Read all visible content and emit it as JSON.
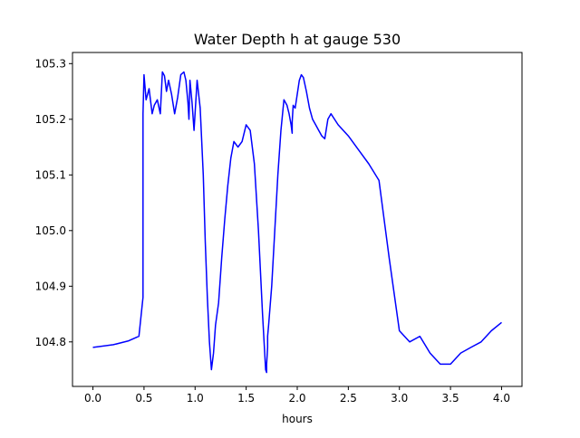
{
  "chart_data": {
    "type": "line",
    "title": "Water Depth h at gauge 530",
    "xlabel": "hours",
    "ylabel": "",
    "xlim": [
      -0.2,
      4.2
    ],
    "ylim": [
      104.72,
      105.32
    ],
    "xticks": [
      0.0,
      0.5,
      1.0,
      1.5,
      2.0,
      2.5,
      3.0,
      3.5,
      4.0
    ],
    "xtick_labels": [
      "0.0",
      "0.5",
      "1.0",
      "1.5",
      "2.0",
      "2.5",
      "3.0",
      "3.5",
      "4.0"
    ],
    "yticks": [
      104.8,
      104.9,
      105.0,
      105.1,
      105.2,
      105.3
    ],
    "ytick_labels": [
      "104.8",
      "104.9",
      "105.0",
      "105.1",
      "105.2",
      "105.3"
    ],
    "grid": false,
    "legend": "none",
    "series": [
      {
        "color": "#0000ff",
        "x": [
          0.0,
          0.2,
          0.35,
          0.45,
          0.49,
          0.49,
          0.5,
          0.52,
          0.55,
          0.58,
          0.6,
          0.63,
          0.66,
          0.68,
          0.7,
          0.72,
          0.74,
          0.77,
          0.8,
          0.83,
          0.86,
          0.89,
          0.91,
          0.93,
          0.94,
          0.95,
          0.97,
          0.99,
          1.02,
          1.05,
          1.08,
          1.1,
          1.12,
          1.14,
          1.16,
          1.18,
          1.2,
          1.23,
          1.26,
          1.29,
          1.32,
          1.35,
          1.38,
          1.42,
          1.46,
          1.5,
          1.54,
          1.58,
          1.62,
          1.66,
          1.69,
          1.7,
          1.7,
          1.71,
          1.71,
          1.72,
          1.75,
          1.78,
          1.81,
          1.84,
          1.87,
          1.9,
          1.92,
          1.94,
          1.95,
          1.95,
          1.96,
          1.98,
          2.0,
          2.02,
          2.04,
          2.06,
          2.09,
          2.12,
          2.15,
          2.18,
          2.21,
          2.24,
          2.27,
          2.3,
          2.33,
          2.4,
          2.5,
          2.6,
          2.7,
          2.8,
          2.9,
          3.0,
          3.1,
          3.2,
          3.3,
          3.4,
          3.5,
          3.6,
          3.7,
          3.8,
          3.9,
          4.0
        ],
        "y": [
          104.79,
          104.795,
          104.802,
          104.81,
          104.88,
          105.21,
          105.28,
          105.235,
          105.255,
          105.21,
          105.225,
          105.235,
          105.21,
          105.285,
          105.278,
          105.25,
          105.27,
          105.245,
          105.21,
          105.24,
          105.28,
          105.285,
          105.27,
          105.23,
          105.2,
          105.27,
          105.23,
          105.18,
          105.27,
          105.22,
          105.1,
          104.98,
          104.88,
          104.8,
          104.75,
          104.78,
          104.83,
          104.87,
          104.95,
          105.02,
          105.08,
          105.13,
          105.16,
          105.15,
          105.16,
          105.19,
          105.18,
          105.12,
          105.0,
          104.85,
          104.75,
          104.745,
          104.76,
          104.79,
          104.81,
          104.83,
          104.9,
          105.0,
          105.1,
          105.18,
          105.235,
          105.225,
          105.21,
          105.19,
          105.175,
          105.195,
          105.225,
          105.22,
          105.245,
          105.27,
          105.28,
          105.275,
          105.25,
          105.22,
          105.2,
          105.19,
          105.18,
          105.17,
          105.165,
          105.2,
          105.21,
          105.19,
          105.17,
          105.145,
          105.12,
          105.09,
          104.95,
          104.82,
          104.8,
          104.81,
          104.78,
          104.76,
          104.76,
          104.78,
          104.79,
          104.8,
          104.82,
          104.835
        ]
      }
    ]
  }
}
